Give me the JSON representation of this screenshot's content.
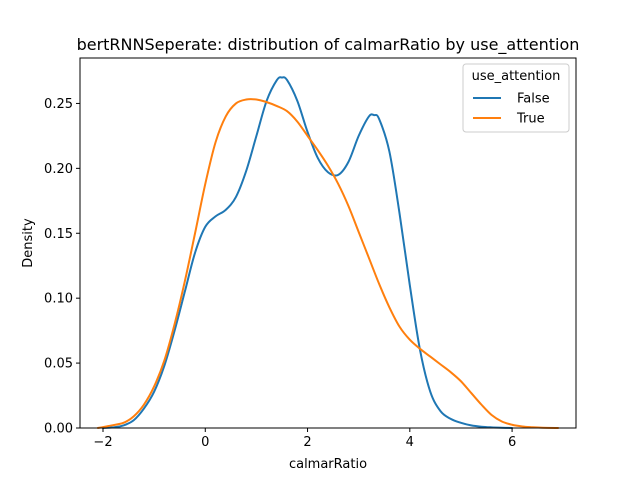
{
  "chart_data": {
    "type": "line",
    "title": "bertRNNSeperate: distribution of calmarRatio by use_attention",
    "xlabel": "calmarRatio",
    "ylabel": "Density",
    "xlim": [
      -2.45,
      7.25
    ],
    "ylim": [
      0.0,
      0.285
    ],
    "xticks": [
      -2,
      0,
      2,
      4,
      6
    ],
    "xtick_labels": [
      "−2",
      "0",
      "2",
      "4",
      "6"
    ],
    "yticks": [
      0.0,
      0.05,
      0.1,
      0.15,
      0.2,
      0.25
    ],
    "ytick_labels": [
      "0.00",
      "0.05",
      "0.10",
      "0.15",
      "0.20",
      "0.25"
    ],
    "grid": false,
    "legend": {
      "title": "use_attention",
      "placement": "top-right"
    },
    "colors": {
      "False": "#1f77b4",
      "True": "#ff7f0e"
    },
    "series": [
      {
        "name": "False",
        "color": "#1f77b4",
        "x": [
          -2.0,
          -1.8,
          -1.6,
          -1.4,
          -1.2,
          -1.0,
          -0.8,
          -0.6,
          -0.4,
          -0.2,
          0.0,
          0.2,
          0.4,
          0.6,
          0.8,
          1.0,
          1.2,
          1.4,
          1.5,
          1.6,
          1.8,
          2.0,
          2.2,
          2.4,
          2.6,
          2.8,
          3.0,
          3.2,
          3.3,
          3.4,
          3.6,
          3.8,
          4.0,
          4.2,
          4.4,
          4.6,
          4.8,
          5.0,
          5.2,
          5.4,
          5.6,
          5.8,
          6.0
        ],
        "y": [
          0.0,
          0.0005,
          0.002,
          0.006,
          0.015,
          0.028,
          0.048,
          0.075,
          0.105,
          0.135,
          0.155,
          0.163,
          0.168,
          0.178,
          0.198,
          0.225,
          0.252,
          0.268,
          0.27,
          0.268,
          0.252,
          0.228,
          0.208,
          0.197,
          0.195,
          0.205,
          0.225,
          0.24,
          0.241,
          0.238,
          0.213,
          0.165,
          0.11,
          0.06,
          0.028,
          0.013,
          0.007,
          0.004,
          0.002,
          0.001,
          0.0005,
          0.0002,
          0.0
        ]
      },
      {
        "name": "True",
        "color": "#ff7f0e",
        "x": [
          -2.1,
          -1.9,
          -1.6,
          -1.4,
          -1.2,
          -1.0,
          -0.8,
          -0.6,
          -0.4,
          -0.2,
          0.0,
          0.2,
          0.4,
          0.6,
          0.8,
          1.0,
          1.2,
          1.4,
          1.6,
          1.8,
          2.0,
          2.2,
          2.4,
          2.6,
          2.8,
          3.0,
          3.2,
          3.4,
          3.6,
          3.8,
          4.0,
          4.2,
          4.4,
          4.6,
          4.8,
          5.0,
          5.2,
          5.4,
          5.6,
          5.8,
          6.0,
          6.2,
          6.4,
          6.6,
          6.9
        ],
        "y": [
          0.0,
          0.0015,
          0.004,
          0.009,
          0.018,
          0.032,
          0.052,
          0.08,
          0.113,
          0.15,
          0.188,
          0.22,
          0.24,
          0.25,
          0.253,
          0.253,
          0.251,
          0.248,
          0.244,
          0.236,
          0.225,
          0.214,
          0.202,
          0.188,
          0.171,
          0.151,
          0.131,
          0.111,
          0.093,
          0.078,
          0.068,
          0.061,
          0.055,
          0.049,
          0.043,
          0.036,
          0.027,
          0.018,
          0.01,
          0.005,
          0.0025,
          0.0012,
          0.0006,
          0.0002,
          0.0
        ]
      }
    ]
  }
}
